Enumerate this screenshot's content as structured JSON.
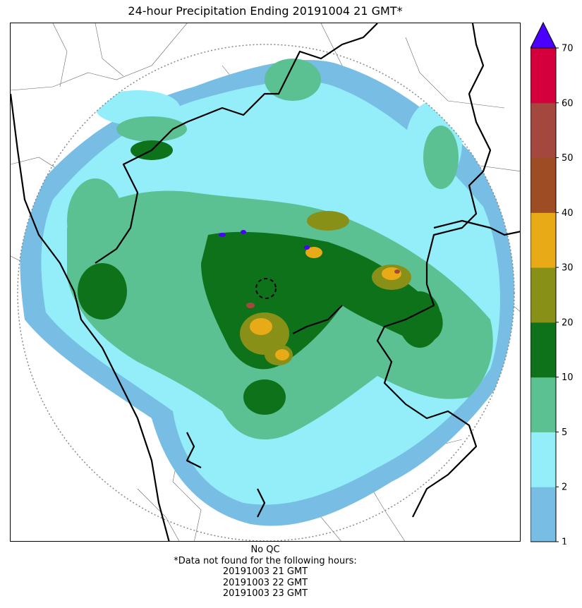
{
  "title": "24-hour Precipitation Ending 20191004 21 GMT*",
  "colorbar": {
    "levels": [
      1,
      2,
      5,
      10,
      20,
      30,
      40,
      50,
      60,
      70
    ],
    "tick_labels": [
      "1",
      "2",
      "5",
      "10",
      "20",
      "30",
      "40",
      "50",
      "60",
      "70"
    ],
    "colors": [
      "#77bde4",
      "#93eefa",
      "#5bc193",
      "#0e721a",
      "#899018",
      "#e8aa17",
      "#9e4c24",
      "#a4473f",
      "#d4003d"
    ],
    "over_color": "#4a00ff"
  },
  "notes": {
    "line1": "No QC",
    "line2": "*Data not found for the following hours:",
    "hours": [
      "20191003 21 GMT",
      "20191003 22 GMT",
      "20191003 23 GMT"
    ]
  }
}
